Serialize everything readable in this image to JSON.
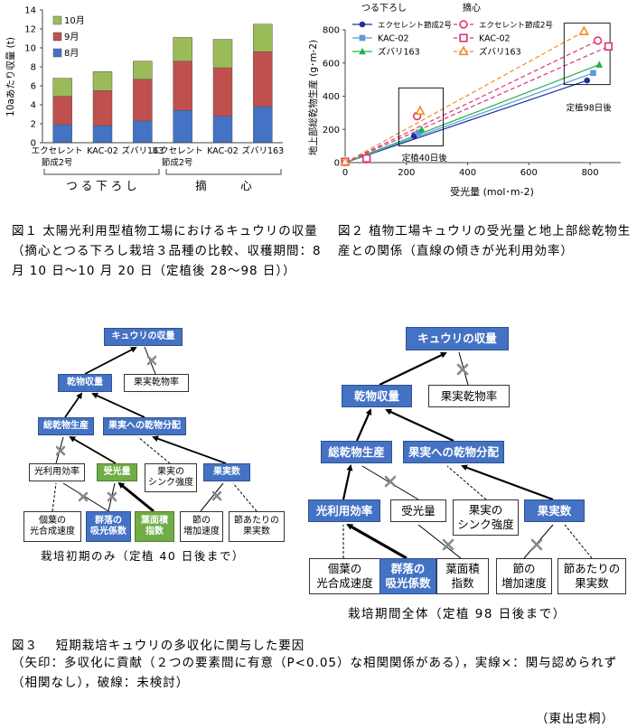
{
  "fig1": {
    "caption": "図１ 太陽光利用型植物工場におけるキュウリの収量（摘心とつる下ろし栽培３品種の比較、収穫期間：8月 10 日～10 月 20 日（定植後 28～98 日））",
    "chart_data": {
      "type": "bar",
      "stacked": true,
      "ylabel": "10aあたり収量 (t)",
      "ylim": [
        0,
        14
      ],
      "yticks": [
        "0",
        "2",
        "4",
        "6",
        "8",
        "10",
        "12",
        "14"
      ],
      "categories": [
        "エクセレント節成2号",
        "KAC-02",
        "ズバリ163",
        "エクセレント節成2号",
        "KAC-02",
        "ズバリ163"
      ],
      "tick_labels": [
        [
          "エクセレント",
          "節成2号"
        ],
        [
          "KAC-02"
        ],
        [
          "ズバリ163"
        ],
        [
          "エクセレント",
          "節成2号"
        ],
        [
          "KAC-02"
        ],
        [
          "ズバリ163"
        ]
      ],
      "groups": [
        "つ る 下 ろ し",
        "摘　　　心"
      ],
      "series": [
        {
          "name": "8月",
          "color": "#4472c4",
          "values": [
            1.9,
            1.8,
            2.3,
            3.4,
            2.8,
            3.8
          ]
        },
        {
          "name": "9月",
          "color": "#c0504d",
          "values": [
            3.0,
            3.7,
            4.4,
            5.2,
            5.1,
            5.8
          ]
        },
        {
          "name": "10月",
          "color": "#9bbb59",
          "values": [
            1.9,
            2.0,
            1.9,
            2.5,
            3.0,
            2.9
          ]
        }
      ]
    }
  },
  "fig2": {
    "caption": "図２ 植物工場キュウリの受光量と地上部総乾物生産との関係（直線の傾きが光利用効率）",
    "chart_data": {
      "type": "scatter",
      "xlabel": "受光量 (mol･m-2)",
      "ylabel": "地上部総乾物生産 (g･m-2)",
      "xlim": [
        0,
        900
      ],
      "ylim": [
        0,
        800
      ],
      "xticks": [
        "0",
        "200",
        "400",
        "600",
        "800"
      ],
      "yticks": [
        "0",
        "200",
        "400",
        "600",
        "800"
      ],
      "legend_titles": [
        "つる下ろし",
        "摘心"
      ],
      "annotations": [
        "定植40日後",
        "定植98日後"
      ],
      "series": [
        {
          "name": "エクセレント節成2号",
          "group": "つる下ろし",
          "color": "#1f2fa0",
          "marker": "filled-circle",
          "line": "solid",
          "points": [
            [
              0,
              5
            ],
            [
              225,
              160
            ],
            [
              790,
              495
            ]
          ]
        },
        {
          "name": "KAC-02",
          "group": "つる下ろし",
          "color": "#5b9bd5",
          "marker": "filled-square",
          "line": "solid",
          "points": [
            [
              0,
              5
            ],
            [
              240,
              180
            ],
            [
              810,
              540
            ]
          ]
        },
        {
          "name": "ズバリ163",
          "group": "つる下ろし",
          "color": "#22b24c",
          "marker": "filled-triangle",
          "line": "solid",
          "points": [
            [
              0,
              5
            ],
            [
              250,
              200
            ],
            [
              830,
              590
            ]
          ]
        },
        {
          "name": "エクセレント節成2号",
          "group": "摘心",
          "color": "#e8336c",
          "marker": "open-circle",
          "line": "dashed",
          "points": [
            [
              0,
              5
            ],
            [
              70,
              20
            ],
            [
              235,
              280
            ],
            [
              825,
              735
            ]
          ]
        },
        {
          "name": "KAC-02",
          "group": "摘心",
          "color": "#d63384",
          "marker": "open-square",
          "line": "dashed",
          "points": [
            [
              0,
              5
            ],
            [
              70,
              25
            ],
            [
              860,
              700
            ]
          ]
        },
        {
          "name": "ズバリ163",
          "group": "摘心",
          "color": "#f28c28",
          "marker": "open-triangle",
          "line": "dashed",
          "points": [
            [
              0,
              5
            ],
            [
              245,
              310
            ],
            [
              780,
              790
            ]
          ]
        }
      ]
    }
  },
  "fig3": {
    "left": {
      "yield": "キュウリの収量",
      "dry_yield": "乾物収量",
      "fruit_ratio": "果実乾物率",
      "total_dm": "総乾物生産",
      "partition": "果実への乾物分配",
      "rue": "光利用効率",
      "received": "受光量",
      "sink": "果実の シンク強度",
      "fruit_num": "果実数",
      "leaf_photo": "個葉の 光合成速度",
      "canopy": "群落の 吸光係数",
      "lai": "葉面積 指数",
      "node_rate": "節の 増加速度",
      "fruit_per_node": "節あたりの 果実数",
      "sub": "栽培初期のみ（定植 40 日後まで）"
    },
    "right": {
      "yield": "キュウリの収量",
      "dry_yield": "乾物収量",
      "fruit_ratio": "果実乾物率",
      "total_dm": "総乾物生産",
      "partition": "果実への乾物分配",
      "rue": "光利用効率",
      "received": "受光量",
      "sink": "果実の シンク強度",
      "fruit_num": "果実数",
      "leaf_photo": "個葉の 光合成速度",
      "canopy": "群落の 吸光係数",
      "lai": "葉面積 指数",
      "node_rate": "節の 増加速度",
      "fruit_per_node": "節あたりの 果実数",
      "sub": "栽培期間全体（定植 98 日後まで）"
    },
    "caption_title": "図３　 短期栽培キュウリの多収化に関与した要因",
    "caption_body": "（矢印：多収化に貢献（２つの要素間に有意（P<0.05）な相関関係がある），実線×：関与認められず（相関なし），破線：未検討）"
  },
  "author": "（東出忠桐）"
}
